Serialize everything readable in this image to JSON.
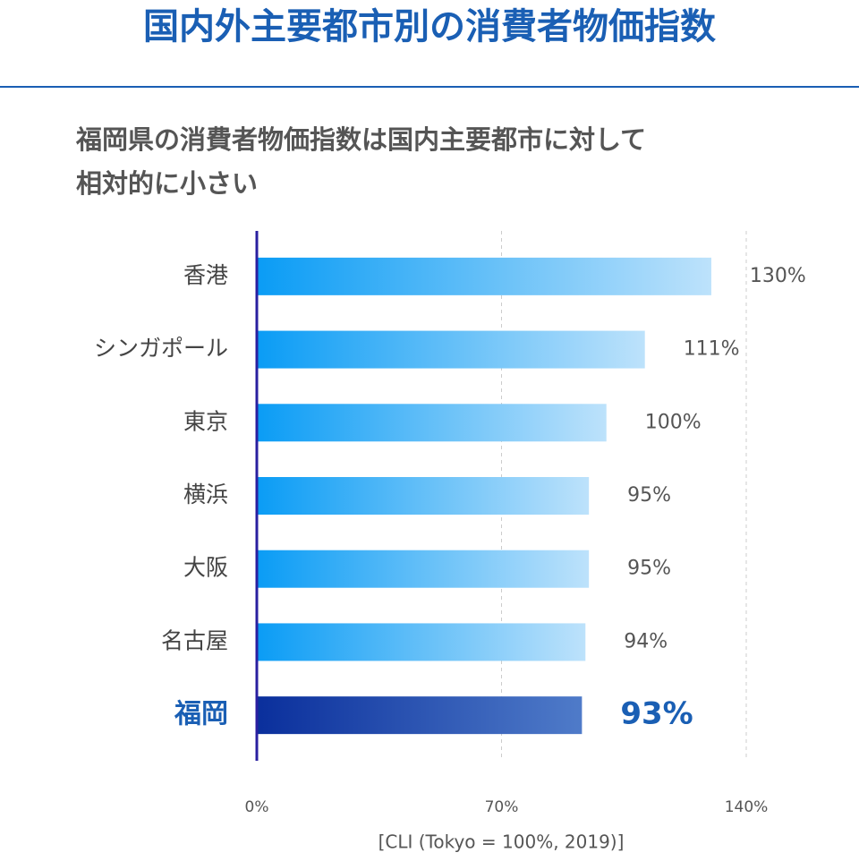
{
  "chart_data": {
    "type": "barh",
    "title": "国内外主要都市別の消費者物価指数",
    "subtitle": [
      "福岡県の消費者物価指数は国内主要都市に対して",
      "相対的に小さい"
    ],
    "categories": [
      "香港",
      "シンガポール",
      "東京",
      "横浜",
      "大阪",
      "名古屋",
      "福岡"
    ],
    "values": [
      130,
      111,
      100,
      95,
      95,
      94,
      93
    ],
    "value_labels": [
      "130%",
      "111%",
      "100%",
      "95%",
      "95%",
      "94%",
      "93%"
    ],
    "colors": [
      [
        "#0a9cf5",
        "#bde2fb"
      ],
      [
        "#0a9cf5",
        "#bde2fb"
      ],
      [
        "#0a9cf5",
        "#bde2fb"
      ],
      [
        "#0a9cf5",
        "#bde2fb"
      ],
      [
        "#0a9cf5",
        "#bde2fb"
      ],
      [
        "#0a9cf5",
        "#bde2fb"
      ],
      [
        "#0a2f9c",
        "#4f7bc9"
      ]
    ],
    "highlight": [
      false,
      false,
      false,
      false,
      false,
      false,
      true
    ],
    "xlim": [
      0,
      140
    ],
    "xticks": [
      {
        "value": 0,
        "label": "0%"
      },
      {
        "value": 70,
        "label": "70%"
      },
      {
        "value": 140,
        "label": "140%"
      }
    ],
    "grid": true,
    "xlabel": "[CLI (Tokyo = 100%, 2019)]"
  }
}
